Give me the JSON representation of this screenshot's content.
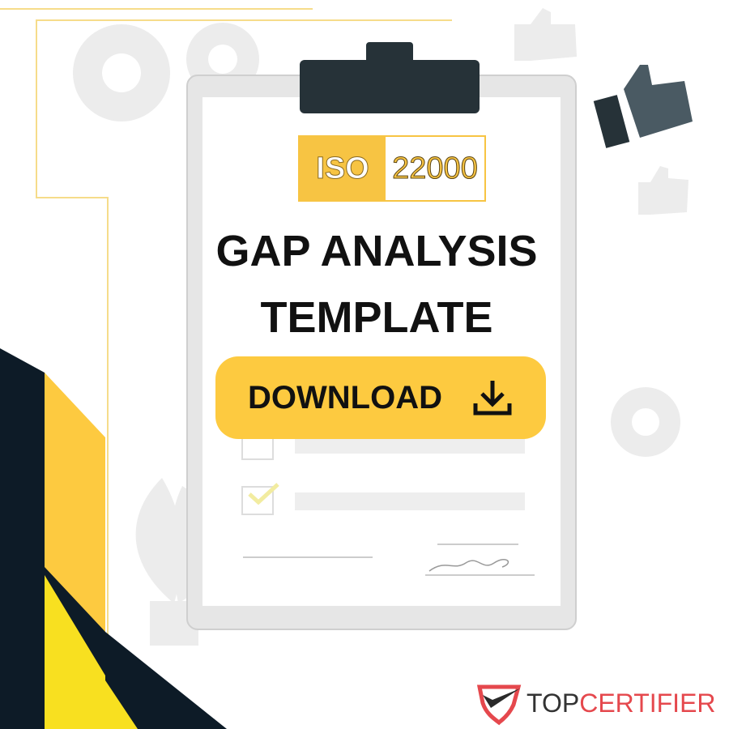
{
  "badge": {
    "left": "ISO",
    "right": "22000"
  },
  "title": {
    "line1": "GAP ANALYSIS",
    "line2": "TEMPLATE"
  },
  "download": {
    "label": "DOWNLOAD",
    "icon": "download-icon"
  },
  "brand": {
    "part1": "TOP",
    "part2": "CERTIFIER"
  },
  "colors": {
    "accent": "#fdca40",
    "dark": "#0d1b27",
    "brand_red": "#e5484d",
    "brand_dark": "#333333"
  }
}
